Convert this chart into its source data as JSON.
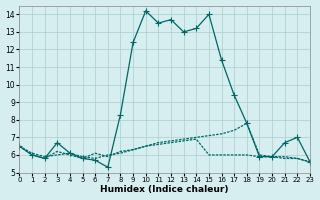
{
  "xlabel": "Humidex (Indice chaleur)",
  "xlim": [
    0,
    23
  ],
  "ylim": [
    5,
    14.5
  ],
  "yticks": [
    5,
    6,
    7,
    8,
    9,
    10,
    11,
    12,
    13,
    14
  ],
  "xticks": [
    0,
    1,
    2,
    3,
    4,
    5,
    6,
    7,
    8,
    9,
    10,
    11,
    12,
    13,
    14,
    15,
    16,
    17,
    18,
    19,
    20,
    21,
    22,
    23
  ],
  "background_color": "#d6eef0",
  "grid_color": "#aacccc",
  "line_color": "#006666",
  "line1_x": [
    0,
    1,
    2,
    3,
    4,
    5,
    6,
    7,
    8,
    9,
    10,
    11,
    12,
    13,
    14,
    15,
    16,
    17,
    18,
    19,
    20,
    21,
    22,
    23
  ],
  "line1_y": [
    6.5,
    6.0,
    5.8,
    6.7,
    6.1,
    5.8,
    5.7,
    5.3,
    8.3,
    12.4,
    14.2,
    13.5,
    13.7,
    13.0,
    13.2,
    14.0,
    11.4,
    9.4,
    7.8,
    5.9,
    5.9,
    6.7,
    7.0,
    5.6
  ],
  "line2_x": [
    0,
    1,
    2,
    3,
    4,
    5,
    6,
    7,
    8,
    9,
    10,
    11,
    12,
    13,
    14,
    15,
    16,
    17,
    18,
    19,
    20,
    21,
    22,
    23
  ],
  "line2_y": [
    6.5,
    6.0,
    5.8,
    6.2,
    6.0,
    5.8,
    6.1,
    5.9,
    6.2,
    6.3,
    6.5,
    6.6,
    6.7,
    6.8,
    6.9,
    6.0,
    6.0,
    6.0,
    6.0,
    5.9,
    5.9,
    5.8,
    5.8,
    5.6
  ],
  "line3_x": [
    0,
    1,
    2,
    3,
    4,
    5,
    6,
    7,
    8,
    9,
    10,
    11,
    12,
    13,
    14,
    15,
    16,
    17,
    18,
    19,
    20,
    21,
    22,
    23
  ],
  "line3_y": [
    6.5,
    6.1,
    5.9,
    6.0,
    6.1,
    5.9,
    5.8,
    6.0,
    6.1,
    6.3,
    6.5,
    6.7,
    6.8,
    6.9,
    7.0,
    7.1,
    7.2,
    7.4,
    7.8,
    6.0,
    5.9,
    5.9,
    5.8,
    5.6
  ]
}
